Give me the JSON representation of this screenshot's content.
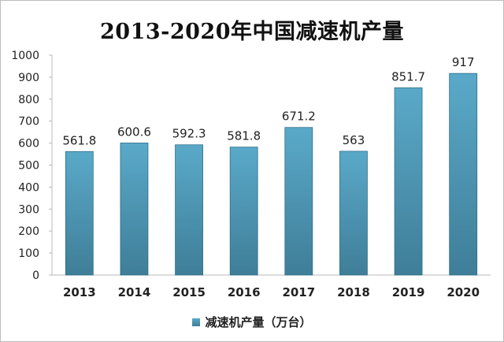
{
  "chart_data": {
    "type": "bar",
    "title": "2013-2020年中国减速机产量",
    "categories": [
      "2013",
      "2014",
      "2015",
      "2016",
      "2017",
      "2018",
      "2019",
      "2020"
    ],
    "series": [
      {
        "name": "减速机产量（万台）",
        "values": [
          561.8,
          600.6,
          592.3,
          581.8,
          671.2,
          563,
          851.7,
          917
        ],
        "value_labels": [
          "561.8",
          "600.6",
          "592.3",
          "581.8",
          "671.2",
          "563",
          "851.7",
          "917"
        ]
      }
    ],
    "ylim": [
      0,
      1000
    ],
    "yticks": [
      0,
      100,
      200,
      300,
      400,
      500,
      600,
      700,
      800,
      900,
      1000
    ],
    "xlabel": "",
    "ylabel": "",
    "grid": false,
    "legend_position": "bottom",
    "colors": {
      "bar_top": "#5aa9c9",
      "bar_bottom": "#3f7e98",
      "bar_edge": "#2f6f88"
    }
  }
}
